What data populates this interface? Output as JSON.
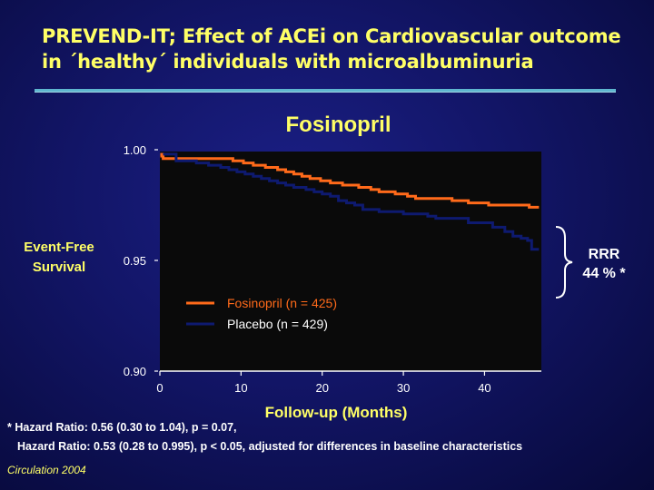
{
  "slide": {
    "title_line1": "PREVEND-IT; Effect of ACEi on Cardiovascular outcome",
    "title_line2": "in ´healthy´ individuals with microalbuminuria",
    "footnote_line1": "* Hazard Ratio: 0.56 (0.30 to 1.04), p = 0.07,",
    "footnote_line2": "Hazard Ratio: 0.53 (0.28 to 0.995), p < 0.05, adjusted for differences in baseline characteristics",
    "citation": "Circulation 2004",
    "rrr_line1": "RRR",
    "rrr_line2": "44 % *"
  },
  "chart_data": {
    "type": "line",
    "title": "Fosinopril",
    "xlabel": "Follow-up (Months)",
    "ylabel_line1": "Event-Free",
    "ylabel_line2": "Survival",
    "xlim": [
      0,
      47
    ],
    "ylim": [
      0.9,
      1.0
    ],
    "xticks": [
      0,
      10,
      20,
      30,
      40
    ],
    "yticks": [
      0.9,
      0.95,
      1.0
    ],
    "ytick_labels": [
      "0.90",
      "0.95",
      "1.00"
    ],
    "legend_position": "center-left",
    "series": [
      {
        "name": "Fosinopril (n = 425)",
        "color": "#ff6a1a",
        "step": true,
        "points": [
          [
            0,
            0.998
          ],
          [
            0.4,
            0.996
          ],
          [
            9,
            0.995
          ],
          [
            10.3,
            0.994
          ],
          [
            11.5,
            0.993
          ],
          [
            13,
            0.992
          ],
          [
            14.5,
            0.991
          ],
          [
            15.5,
            0.99
          ],
          [
            16.5,
            0.989
          ],
          [
            17.5,
            0.988
          ],
          [
            18.5,
            0.987
          ],
          [
            19.8,
            0.986
          ],
          [
            21,
            0.985
          ],
          [
            22.5,
            0.984
          ],
          [
            24.5,
            0.983
          ],
          [
            26,
            0.982
          ],
          [
            27,
            0.981
          ],
          [
            29,
            0.98
          ],
          [
            30.5,
            0.979
          ],
          [
            31.5,
            0.978
          ],
          [
            33.5,
            0.978
          ],
          [
            36,
            0.977
          ],
          [
            38,
            0.976
          ],
          [
            40.5,
            0.975
          ],
          [
            45.5,
            0.974
          ],
          [
            46.7,
            0.974
          ]
        ]
      },
      {
        "name": "Placebo (n = 429)",
        "color": "#0e1a70",
        "step": true,
        "points": [
          [
            0,
            0.998
          ],
          [
            2,
            0.995
          ],
          [
            4.5,
            0.994
          ],
          [
            6,
            0.993
          ],
          [
            7.5,
            0.992
          ],
          [
            8.5,
            0.991
          ],
          [
            9.5,
            0.99
          ],
          [
            10.5,
            0.989
          ],
          [
            11.5,
            0.988
          ],
          [
            12.5,
            0.987
          ],
          [
            13.5,
            0.986
          ],
          [
            14.5,
            0.985
          ],
          [
            15.5,
            0.984
          ],
          [
            16.5,
            0.983
          ],
          [
            18,
            0.982
          ],
          [
            19,
            0.981
          ],
          [
            20,
            0.98
          ],
          [
            21,
            0.979
          ],
          [
            22,
            0.977
          ],
          [
            23,
            0.976
          ],
          [
            24,
            0.975
          ],
          [
            25,
            0.973
          ],
          [
            27,
            0.972
          ],
          [
            30,
            0.971
          ],
          [
            33,
            0.97
          ],
          [
            34,
            0.969
          ],
          [
            38,
            0.967
          ],
          [
            41,
            0.965
          ],
          [
            42.5,
            0.963
          ],
          [
            43.5,
            0.961
          ],
          [
            44.5,
            0.96
          ],
          [
            45.3,
            0.959
          ],
          [
            45.8,
            0.955
          ],
          [
            46.7,
            0.955
          ]
        ]
      }
    ]
  }
}
